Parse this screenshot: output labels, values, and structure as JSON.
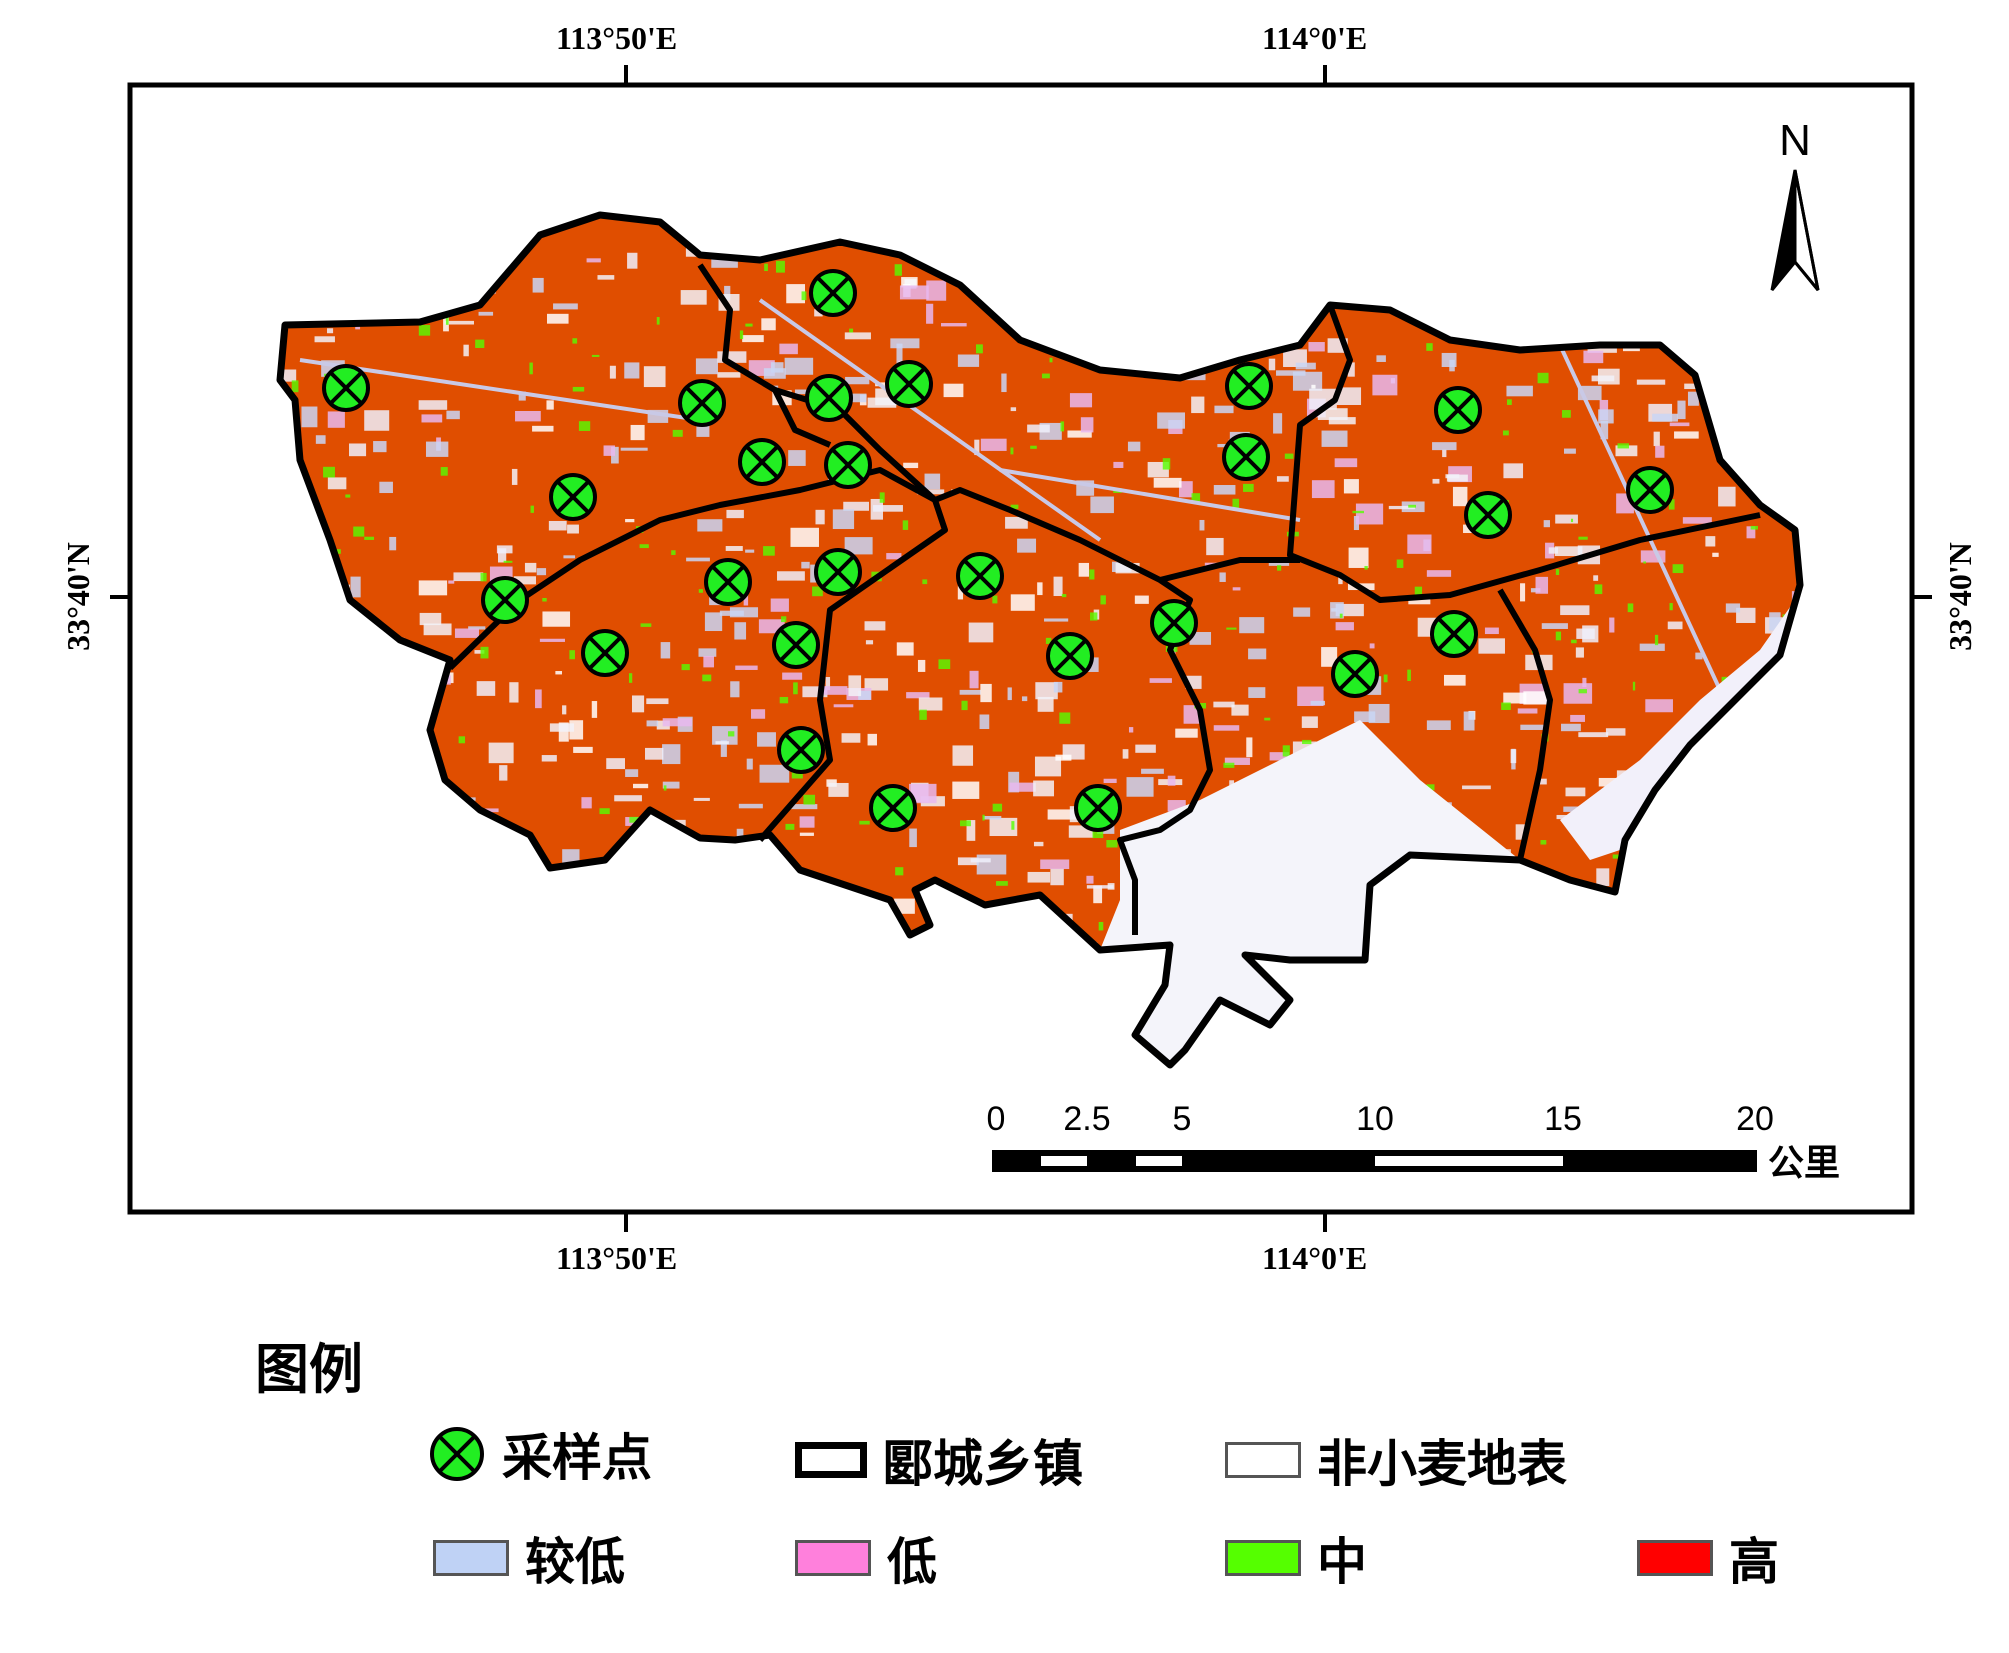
{
  "map": {
    "graticule": {
      "lon_labels": [
        "113°50'E",
        "114°0'E"
      ],
      "lat_label": "33°40'N"
    },
    "north_arrow": {
      "label": "N",
      "icon": "north-arrow-icon"
    },
    "scale_bar": {
      "ticks": [
        "0",
        "2.5",
        "5",
        "10",
        "15",
        "20"
      ],
      "unit": "公里"
    },
    "fill_color": "#e04e00",
    "sample_point_color": "#22ee22"
  },
  "legend": {
    "title": "图例",
    "items": [
      {
        "label": "采样点",
        "type": "sample-point",
        "color": "#22ee22"
      },
      {
        "label": "郾城乡镇",
        "type": "boundary",
        "color": "#000000"
      },
      {
        "label": "非小麦地表",
        "type": "swatch",
        "color": "#ffffff"
      },
      {
        "label": "较低",
        "type": "swatch",
        "color": "#bfd2f5"
      },
      {
        "label": "低",
        "type": "swatch",
        "color": "#ff80dc"
      },
      {
        "label": "中",
        "type": "swatch",
        "color": "#55ff00"
      },
      {
        "label": "高",
        "type": "swatch",
        "color": "#ff0000"
      }
    ]
  }
}
